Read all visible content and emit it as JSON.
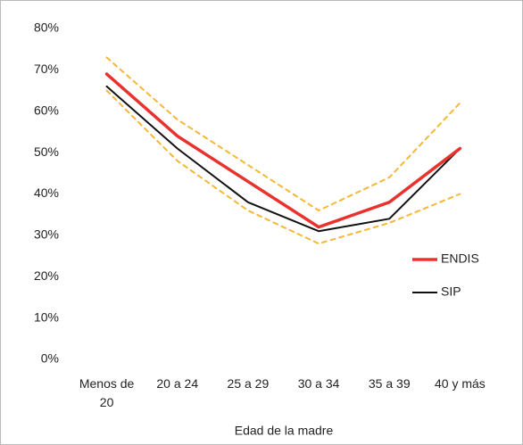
{
  "chart_data": {
    "type": "line",
    "x_label": "Edad de la madre",
    "categories": [
      "Menos de 20",
      "20 a 24",
      "25 a 29",
      "30 a 34",
      "35 a 39",
      "40 y más"
    ],
    "series": [
      {
        "name": "ENDIS",
        "color": "#e8322d",
        "width": 3.5,
        "values": [
          69,
          54,
          43,
          32,
          38,
          51
        ]
      },
      {
        "name": "SIP",
        "color": "#111111",
        "width": 2,
        "values": [
          66,
          51,
          38,
          31,
          34,
          51
        ]
      },
      {
        "color": "#f5b836",
        "width": 2,
        "dashed": true,
        "values": [
          73,
          58,
          47,
          36,
          44,
          62
        ]
      },
      {
        "color": "#f5b836",
        "width": 2,
        "dashed": true,
        "values": [
          65,
          48,
          36,
          28,
          33,
          40
        ]
      }
    ],
    "ylim": [
      0,
      80
    ],
    "yticks": [
      {
        "value": 0,
        "label": "0%"
      },
      {
        "value": 10,
        "label": "10%"
      },
      {
        "value": 20,
        "label": "20%"
      },
      {
        "value": 30,
        "label": "30%"
      },
      {
        "value": 40,
        "label": "40%"
      },
      {
        "value": 50,
        "label": "50%"
      },
      {
        "value": 60,
        "label": "60%"
      },
      {
        "value": 70,
        "label": "70%"
      },
      {
        "value": 80,
        "label": "80%"
      }
    ],
    "legend": "right"
  }
}
